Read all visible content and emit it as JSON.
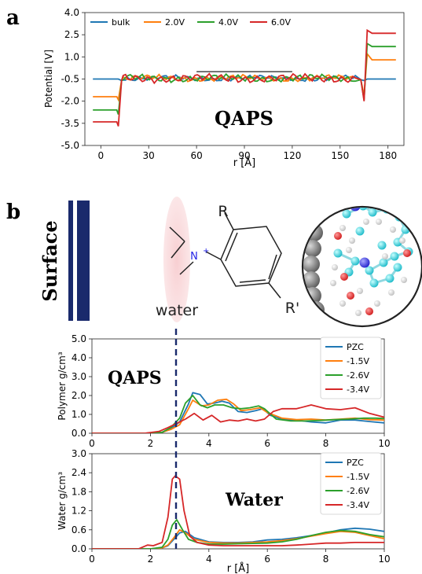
{
  "panel_labels": {
    "a": "a",
    "b": "b"
  },
  "chart_data": [
    {
      "type": "line",
      "panel": "a",
      "ylabel": "Potential  [V]",
      "xlabel": "r [Å]",
      "xlim": [
        -10,
        190
      ],
      "ylim": [
        -5.0,
        4.0
      ],
      "xticks": [
        0,
        30,
        60,
        90,
        120,
        150,
        180
      ],
      "yticks": [
        -5.0,
        -3.5,
        -2.0,
        -0.5,
        1.0,
        2.5,
        4.0
      ],
      "xtick_labels": [
        "0",
        "30",
        "60",
        "90",
        "120",
        "150",
        "180"
      ],
      "ytick_labels": [
        "-5.0",
        "-3.5",
        "-2.0",
        "-0.5",
        "1.0",
        "2.5",
        "4.0"
      ],
      "annotation": "QAPS",
      "reference_bar": {
        "x": [
          60,
          120
        ],
        "y": 0.0
      },
      "legend_placement": "top",
      "series": [
        {
          "name": "bulk",
          "color": "#1f77b4",
          "left": -0.5,
          "right": -0.5,
          "pre_min": -0.5,
          "post_min": -0.6,
          "post_max": -0.5,
          "spike_lo": -0.5,
          "spike_hi": -0.5,
          "phase": 0.0
        },
        {
          "name": "2.0V",
          "color": "#ff7f0e",
          "left": -1.7,
          "right": 0.8,
          "pre_min": -1.9,
          "post_min": -1.6,
          "post_max": 1.2,
          "spike_lo": -1.7,
          "spike_hi": 0.8,
          "phase": 1.3
        },
        {
          "name": "4.0V",
          "color": "#2ca02c",
          "left": -2.6,
          "right": 1.7,
          "pre_min": -2.9,
          "post_min": -1.9,
          "post_max": 1.9,
          "spike_lo": -2.6,
          "spike_hi": 1.7,
          "phase": 2.6
        },
        {
          "name": "6.0V",
          "color": "#d62728",
          "left": -3.4,
          "right": 2.6,
          "pre_min": -3.7,
          "post_min": -2.0,
          "post_max": 2.8,
          "spike_lo": -3.4,
          "spike_hi": 2.6,
          "phase": 3.9
        }
      ]
    },
    {
      "type": "line",
      "panel": "b-top",
      "ylabel": "Polymer g/cm³",
      "xlim": [
        0,
        10
      ],
      "ylim": [
        0,
        5.0
      ],
      "xticks": [
        0,
        2,
        4,
        6,
        8,
        10
      ],
      "yticks": [
        0.0,
        1.0,
        2.0,
        3.0,
        4.0,
        5.0
      ],
      "xtick_labels": [
        "0",
        "2",
        "4",
        "6",
        "8",
        "10"
      ],
      "ytick_labels": [
        "0.0",
        "1.0",
        "2.0",
        "3.0",
        "4.0",
        "5.0"
      ],
      "annotation": "QAPS",
      "legend_placement": "top-right",
      "series": [
        {
          "name": "PZC",
          "color": "#1f77b4",
          "x": [
            0,
            1.8,
            2.4,
            2.7,
            3.0,
            3.3,
            3.45,
            3.7,
            3.95,
            4.2,
            4.45,
            4.7,
            5.0,
            5.3,
            5.6,
            5.85,
            6.1,
            6.5,
            7.0,
            7.5,
            8.0,
            8.5,
            9.0,
            9.5,
            10.0
          ],
          "y": [
            0,
            0,
            0.05,
            0.25,
            0.6,
            1.55,
            2.15,
            2.05,
            1.55,
            1.6,
            1.7,
            1.6,
            1.15,
            1.1,
            1.2,
            1.3,
            0.95,
            0.75,
            0.7,
            0.6,
            0.55,
            0.7,
            0.7,
            0.62,
            0.55
          ]
        },
        {
          "name": "-1.5V",
          "color": "#ff7f0e",
          "x": [
            0,
            1.8,
            2.4,
            2.7,
            3.0,
            3.3,
            3.45,
            3.75,
            4.0,
            4.3,
            4.6,
            4.85,
            5.1,
            5.4,
            5.75,
            6.0,
            6.5,
            7.0,
            7.5,
            8.0,
            8.5,
            9.0,
            9.5,
            10.0
          ],
          "y": [
            0,
            0,
            0.05,
            0.2,
            0.45,
            1.3,
            1.75,
            1.45,
            1.5,
            1.75,
            1.8,
            1.55,
            1.2,
            1.25,
            1.35,
            1.1,
            0.8,
            0.72,
            0.75,
            0.7,
            0.75,
            0.8,
            0.72,
            0.7
          ]
        },
        {
          "name": "-2.6V",
          "color": "#2ca02c",
          "x": [
            0,
            1.8,
            2.4,
            2.7,
            3.0,
            3.2,
            3.45,
            3.7,
            3.95,
            4.2,
            4.5,
            4.8,
            5.1,
            5.4,
            5.7,
            5.9,
            6.3,
            6.8,
            7.3,
            7.8,
            8.3,
            8.8,
            9.3,
            9.7,
            10.0
          ],
          "y": [
            0,
            0,
            0.05,
            0.3,
            0.8,
            1.6,
            2.0,
            1.5,
            1.35,
            1.5,
            1.5,
            1.35,
            1.3,
            1.35,
            1.45,
            1.3,
            0.75,
            0.65,
            0.65,
            0.68,
            0.72,
            0.75,
            0.8,
            0.8,
            0.78
          ]
        },
        {
          "name": "-3.4V",
          "color": "#d62728",
          "x": [
            0,
            1.8,
            2.3,
            2.6,
            2.8,
            3.0,
            3.2,
            3.5,
            3.8,
            4.1,
            4.4,
            4.7,
            5.0,
            5.3,
            5.6,
            5.9,
            6.2,
            6.5,
            7.0,
            7.5,
            8.0,
            8.5,
            9.0,
            9.5,
            10.0
          ],
          "y": [
            0,
            0,
            0.1,
            0.3,
            0.45,
            0.6,
            0.75,
            1.05,
            0.7,
            0.95,
            0.6,
            0.7,
            0.65,
            0.75,
            0.65,
            0.75,
            1.15,
            1.3,
            1.3,
            1.5,
            1.3,
            1.25,
            1.35,
            1.05,
            0.85
          ]
        }
      ]
    },
    {
      "type": "line",
      "panel": "b-bottom",
      "ylabel": "Water g/cm³",
      "xlabel": "r [Å]",
      "xlim": [
        0,
        10
      ],
      "ylim": [
        0,
        3.0
      ],
      "xticks": [
        0,
        2,
        4,
        6,
        8,
        10
      ],
      "yticks": [
        0.0,
        0.6,
        1.2,
        1.8,
        2.4,
        3.0
      ],
      "xtick_labels": [
        "0",
        "2",
        "4",
        "6",
        "8",
        "10"
      ],
      "ytick_labels": [
        "0.0",
        "0.6",
        "1.2",
        "1.8",
        "2.4",
        "3.0"
      ],
      "annotation": "Water",
      "legend_placement": "top-right",
      "series": [
        {
          "name": "PZC",
          "color": "#1f77b4",
          "x": [
            0,
            2.0,
            2.4,
            2.6,
            2.8,
            3.0,
            3.2,
            3.5,
            4.0,
            4.5,
            5.0,
            5.5,
            6.0,
            6.5,
            7.0,
            7.5,
            8.0,
            8.5,
            9.0,
            9.5,
            10.0
          ],
          "y": [
            0,
            0,
            0.03,
            0.1,
            0.3,
            0.5,
            0.55,
            0.35,
            0.22,
            0.2,
            0.2,
            0.22,
            0.28,
            0.3,
            0.35,
            0.42,
            0.5,
            0.6,
            0.65,
            0.62,
            0.55
          ]
        },
        {
          "name": "-1.5V",
          "color": "#ff7f0e",
          "x": [
            0,
            2.0,
            2.4,
            2.6,
            2.8,
            3.0,
            3.2,
            3.5,
            4.0,
            4.5,
            5.0,
            5.5,
            6.0,
            6.5,
            7.0,
            7.5,
            8.0,
            8.5,
            9.0,
            9.5,
            10.0
          ],
          "y": [
            0,
            0,
            0.03,
            0.12,
            0.35,
            0.6,
            0.5,
            0.3,
            0.2,
            0.18,
            0.18,
            0.2,
            0.22,
            0.26,
            0.32,
            0.4,
            0.48,
            0.55,
            0.52,
            0.42,
            0.32
          ]
        },
        {
          "name": "-2.6V",
          "color": "#2ca02c",
          "x": [
            0,
            2.0,
            2.4,
            2.6,
            2.75,
            2.9,
            3.1,
            3.3,
            3.6,
            4.0,
            4.5,
            5.0,
            5.5,
            6.0,
            6.5,
            7.0,
            7.5,
            8.0,
            8.5,
            9.0,
            9.5,
            10.0
          ],
          "y": [
            0,
            0,
            0.05,
            0.3,
            0.75,
            0.92,
            0.6,
            0.3,
            0.2,
            0.15,
            0.15,
            0.16,
            0.17,
            0.18,
            0.22,
            0.3,
            0.42,
            0.52,
            0.58,
            0.55,
            0.45,
            0.38
          ]
        },
        {
          "name": "-3.4V",
          "color": "#d62728",
          "x": [
            0,
            1.6,
            1.9,
            2.1,
            2.4,
            2.6,
            2.75,
            2.85,
            3.0,
            3.15,
            3.35,
            3.6,
            4.0,
            4.5,
            5.0,
            5.5,
            6.0,
            6.5,
            7.0,
            7.5,
            8.0,
            8.5,
            9.0,
            9.5,
            10.0
          ],
          "y": [
            0,
            0,
            0.12,
            0.1,
            0.2,
            1.0,
            2.2,
            2.3,
            2.2,
            1.2,
            0.4,
            0.2,
            0.12,
            0.1,
            0.1,
            0.1,
            0.1,
            0.1,
            0.12,
            0.15,
            0.18,
            0.18,
            0.2,
            0.2,
            0.2
          ]
        }
      ]
    }
  ],
  "schematic": {
    "surface_label": "Surface",
    "water_label": "water",
    "substituent_r": "R",
    "substituent_r_prime": "R'",
    "nitrogen_label": "N",
    "nitrogen_charge": "+"
  }
}
